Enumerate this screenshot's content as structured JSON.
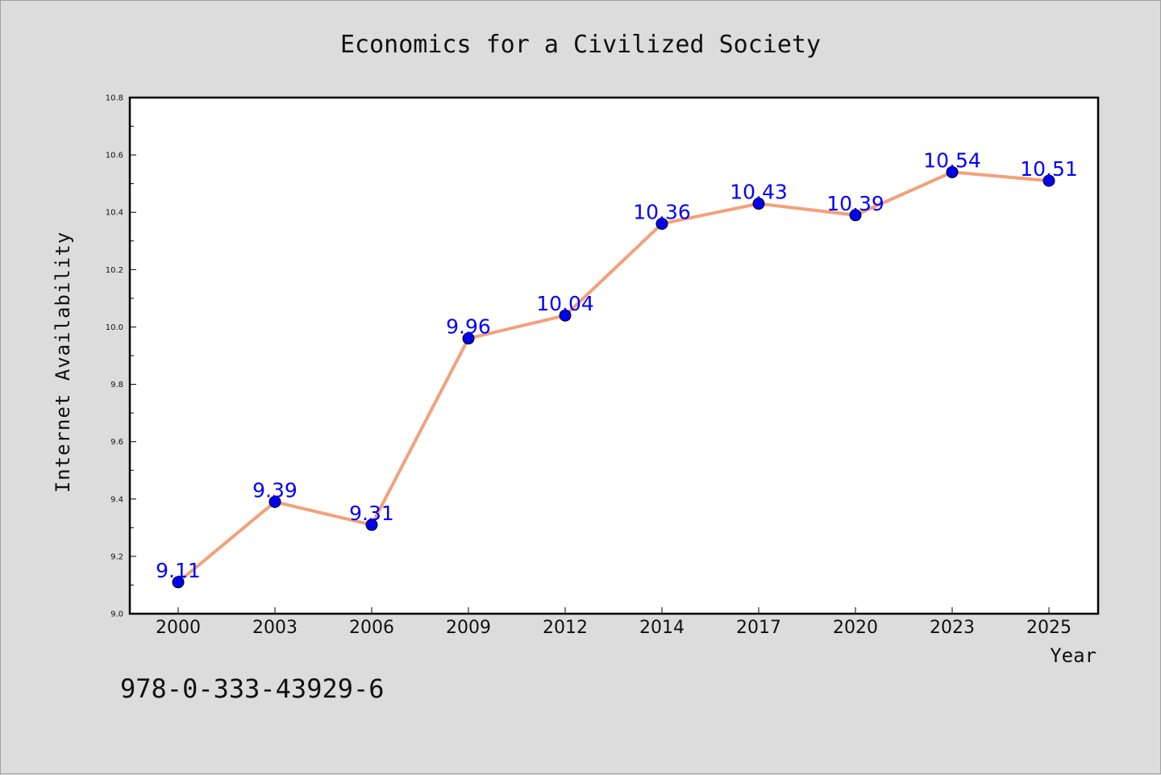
{
  "chart_data": {
    "type": "line",
    "title": "Economics for a Civilized Society",
    "xlabel": "Year",
    "ylabel": "Internet Availability",
    "categories": [
      "2000",
      "2003",
      "2006",
      "2009",
      "2012",
      "2014",
      "2017",
      "2020",
      "2023",
      "2025"
    ],
    "series": [
      {
        "values": [
          9.11,
          9.39,
          9.31,
          9.96,
          10.04,
          10.36,
          10.43,
          10.39,
          10.54,
          10.51
        ],
        "labels": [
          "9.11",
          "9.39",
          "9.31",
          "9.96",
          "10.04",
          "10.36",
          "10.43",
          "10.39",
          "10.54",
          "10.51"
        ],
        "line_color": "#f4a07a",
        "marker_color": "#0000ee"
      }
    ],
    "ylim": [
      9.0,
      10.8
    ],
    "yticks": [
      "9.0",
      "9.2",
      "9.4",
      "9.6",
      "9.8",
      "10.0",
      "10.2",
      "10.4",
      "10.6",
      "10.8"
    ],
    "grid": false,
    "label_color": "#0000ff"
  },
  "annotation": "978-0-333-43929-6",
  "colors": {
    "background": "#dcdcdc",
    "plot_background": "#ffffff"
  }
}
